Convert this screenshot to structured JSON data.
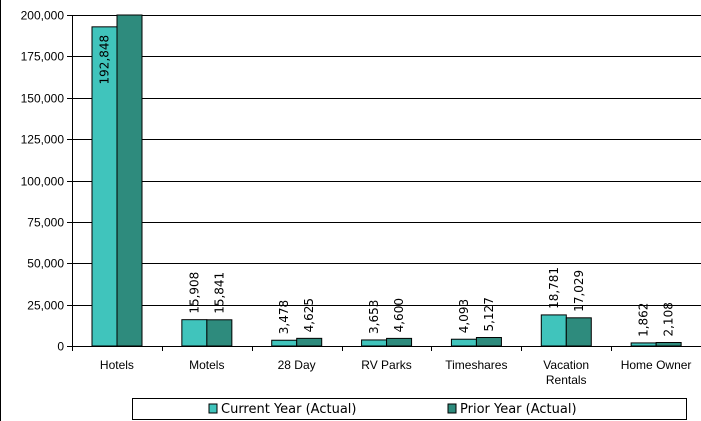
{
  "chart_data": {
    "type": "bar",
    "categories": [
      "Hotels",
      "Motels",
      "28 Day",
      "RV Parks",
      "Timeshares",
      "Vacation Rentals",
      "Home Owner"
    ],
    "category_lines": [
      [
        "Hotels"
      ],
      [
        "Motels"
      ],
      [
        "28 Day"
      ],
      [
        "RV Parks"
      ],
      [
        "Timeshares"
      ],
      [
        "Vacation",
        "Rentals"
      ],
      [
        "Home Owner"
      ]
    ],
    "series": [
      {
        "name": "Current Year (Actual)",
        "color": "#40c4bc",
        "values": [
          192848,
          15908,
          3478,
          3653,
          4093,
          18781,
          1862
        ],
        "labels": [
          "192,848",
          "15,908",
          "3,478",
          "3,653",
          "4,093",
          "18,781",
          "1,862"
        ]
      },
      {
        "name": "Prior Year (Actual)",
        "color": "#2e8b7d",
        "values": [
          200000,
          15841,
          4625,
          4600,
          5127,
          17029,
          2108
        ],
        "labels": [
          null,
          "15,841",
          "4,625",
          "4,600",
          "5,127",
          "17,029",
          "2,108"
        ]
      }
    ],
    "ylim": [
      0,
      200000
    ],
    "yticks": [
      0,
      25000,
      50000,
      75000,
      100000,
      125000,
      150000,
      175000,
      200000
    ],
    "ytick_labels": [
      "0",
      "25,000",
      "50,000",
      "75,000",
      "100,000",
      "125,000",
      "150,000",
      "175,000",
      "200,000"
    ],
    "grid": true,
    "legend_position": "bottom",
    "title": "",
    "xlabel": "",
    "ylabel": ""
  }
}
